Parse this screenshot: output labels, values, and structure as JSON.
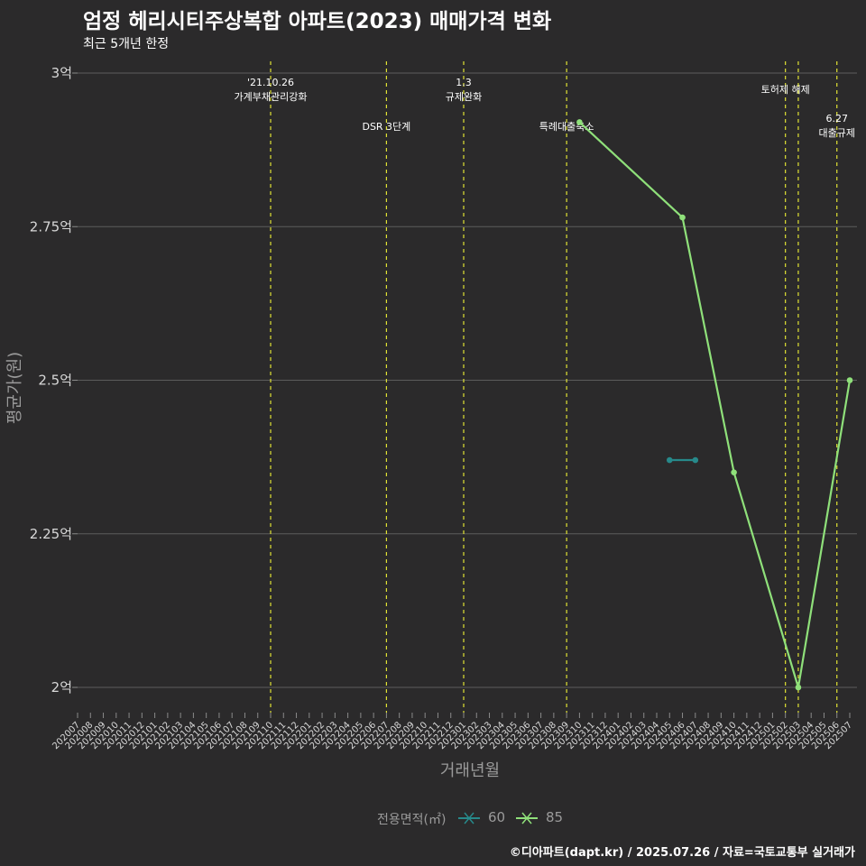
{
  "title": "엄정 헤리시티주상복합 아파트(2023) 매매가격 변화",
  "subtitle": "최근 5개년 한정",
  "caption": "©디아파트(dapt.kr) / 2025.07.26 / 자료=국토교통부 실거래가",
  "colors": {
    "background": "#2b2a2b",
    "grid": "#5c5c5c",
    "event_line": "#e1e334",
    "series_60": "#27898a",
    "series_85": "#8fe07a",
    "axis_text": "#9a9a9a"
  },
  "chart_data": {
    "type": "line",
    "title": "엄정 헤리시티주상복합 아파트(2023) 매매가격 변화",
    "subtitle": "최근 5개년 한정",
    "xlabel": "거래년월",
    "ylabel": "평균가(원)",
    "ylim": [
      1.95,
      3.02
    ],
    "y_ticks": [
      {
        "value": 2.0,
        "label": "2억"
      },
      {
        "value": 2.25,
        "label": "2.25억"
      },
      {
        "value": 2.5,
        "label": "2.5억"
      },
      {
        "value": 2.75,
        "label": "2.75억"
      },
      {
        "value": 3.0,
        "label": "3억"
      }
    ],
    "categories": [
      "202007",
      "202008",
      "202009",
      "202010",
      "202011",
      "202012",
      "202101",
      "202102",
      "202103",
      "202104",
      "202105",
      "202106",
      "202107",
      "202108",
      "202109",
      "202110",
      "202111",
      "202112",
      "202201",
      "202202",
      "202203",
      "202204",
      "202205",
      "202206",
      "202207",
      "202208",
      "202209",
      "202210",
      "202211",
      "202212",
      "202301",
      "202302",
      "202303",
      "202304",
      "202305",
      "202306",
      "202307",
      "202308",
      "202309",
      "202310",
      "202311",
      "202312",
      "202401",
      "202402",
      "202403",
      "202404",
      "202405",
      "202406",
      "202407",
      "202408",
      "202409",
      "202410",
      "202411",
      "202412",
      "202501",
      "202502",
      "202503",
      "202504",
      "202505",
      "202506",
      "202507"
    ],
    "series": [
      {
        "name": "60",
        "color": "#27898a",
        "points": [
          {
            "x": "202405",
            "y": 2.37
          },
          {
            "x": "202407",
            "y": 2.37
          }
        ]
      },
      {
        "name": "85",
        "color": "#8fe07a",
        "points": [
          {
            "x": "202310",
            "y": 2.92
          },
          {
            "x": "202406",
            "y": 2.765
          },
          {
            "x": "202410",
            "y": 2.35
          },
          {
            "x": "202503",
            "y": 2.0
          },
          {
            "x": "202507",
            "y": 2.5
          }
        ]
      }
    ],
    "events": [
      {
        "x": "202110",
        "lines": [
          "'21.10.26",
          "가계부채관리강화"
        ],
        "level": 1
      },
      {
        "x": "202207",
        "lines": [
          "DSR 3단계"
        ],
        "level": 2
      },
      {
        "x": "202301",
        "lines": [
          "1.3",
          "규제완화"
        ],
        "level": 1
      },
      {
        "x": "202309",
        "lines": [
          "특례대출축소"
        ],
        "level": 2
      },
      {
        "x": "202502",
        "lines": [
          "토허제 해제"
        ],
        "level": 1
      },
      {
        "x": "202503",
        "lines": [],
        "level": 1
      },
      {
        "x": "202506",
        "lines": [
          "6.27",
          "대출규제"
        ],
        "level": 2
      }
    ]
  },
  "legend": {
    "title": "전용면적(㎡)",
    "items": [
      {
        "label": "60",
        "color": "#27898a"
      },
      {
        "label": "85",
        "color": "#8fe07a"
      }
    ]
  }
}
